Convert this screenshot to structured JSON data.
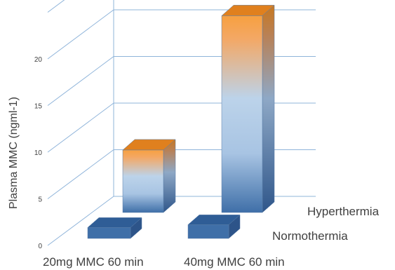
{
  "chart_data": {
    "type": "bar",
    "three_d": true,
    "categories": [
      "20mg MMC 60 min",
      "40mg MMC 60 min"
    ],
    "series": [
      {
        "name": "Normothermia",
        "values": [
          0.5,
          0.8
        ],
        "color": "#3f6fa8"
      },
      {
        "name": "Hyperthermia",
        "values": [
          6.7,
          21.1
        ],
        "color_top": "#f28c28",
        "color_bottom": "#3f6fa8"
      }
    ],
    "yticks": [
      0,
      5,
      10,
      15,
      20
    ],
    "ylim": [
      0,
      25
    ],
    "ylabel": "Plasma MMC (ngml-1)",
    "xlabel": "",
    "title": "",
    "grid": true,
    "legend": "none (series labels on right)"
  }
}
